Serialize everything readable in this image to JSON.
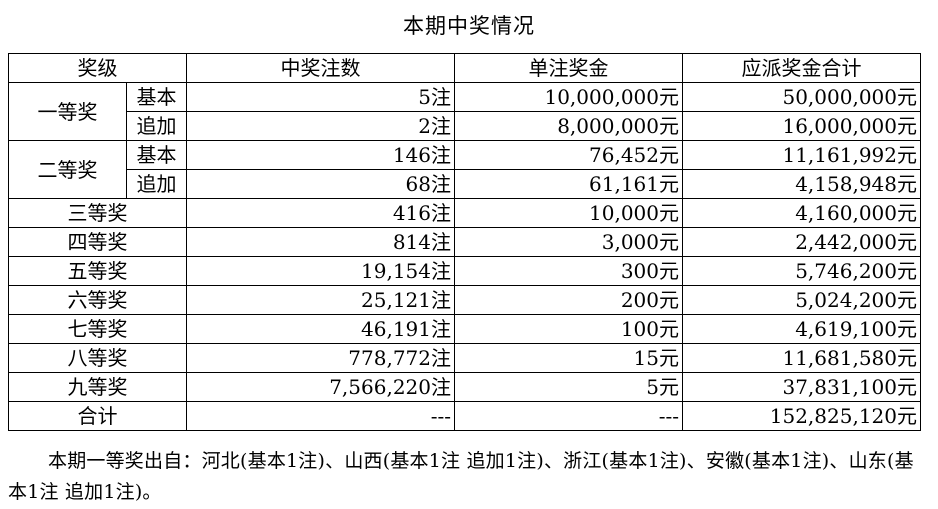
{
  "title": "本期中奖情况",
  "headers": {
    "level": "奖级",
    "count": "中奖注数",
    "unit_prize": "单注奖金",
    "total_prize": "应派奖金合计"
  },
  "tiered_rows": [
    {
      "level": "一等奖",
      "sub": [
        {
          "type": "基本",
          "count": "5注",
          "unit_prize": "10,000,000元",
          "total_prize": "50,000,000元"
        },
        {
          "type": "追加",
          "count": "2注",
          "unit_prize": "8,000,000元",
          "total_prize": "16,000,000元"
        }
      ]
    },
    {
      "level": "二等奖",
      "sub": [
        {
          "type": "基本",
          "count": "146注",
          "unit_prize": "76,452元",
          "total_prize": "11,161,992元"
        },
        {
          "type": "追加",
          "count": "68注",
          "unit_prize": "61,161元",
          "total_prize": "4,158,948元"
        }
      ]
    }
  ],
  "rows": [
    {
      "level": "三等奖",
      "count": "416注",
      "unit_prize": "10,000元",
      "total_prize": "4,160,000元"
    },
    {
      "level": "四等奖",
      "count": "814注",
      "unit_prize": "3,000元",
      "total_prize": "2,442,000元"
    },
    {
      "level": "五等奖",
      "count": "19,154注",
      "unit_prize": "300元",
      "total_prize": "5,746,200元"
    },
    {
      "level": "六等奖",
      "count": "25,121注",
      "unit_prize": "200元",
      "total_prize": "5,024,200元"
    },
    {
      "level": "七等奖",
      "count": "46,191注",
      "unit_prize": "100元",
      "total_prize": "4,619,100元"
    },
    {
      "level": "八等奖",
      "count": "778,772注",
      "unit_prize": "15元",
      "total_prize": "11,681,580元"
    },
    {
      "level": "九等奖",
      "count": "7,566,220注",
      "unit_prize": "5元",
      "total_prize": "37,831,100元"
    }
  ],
  "total": {
    "level": "合计",
    "count": "---",
    "unit_prize": "---",
    "total_prize": "152,825,120元"
  },
  "note": "本期一等奖出自：河北(基本1注)、山西(基本1注 追加1注)、浙江(基本1注)、安徽(基本1注)、山东(基本1注 追加1注)。"
}
